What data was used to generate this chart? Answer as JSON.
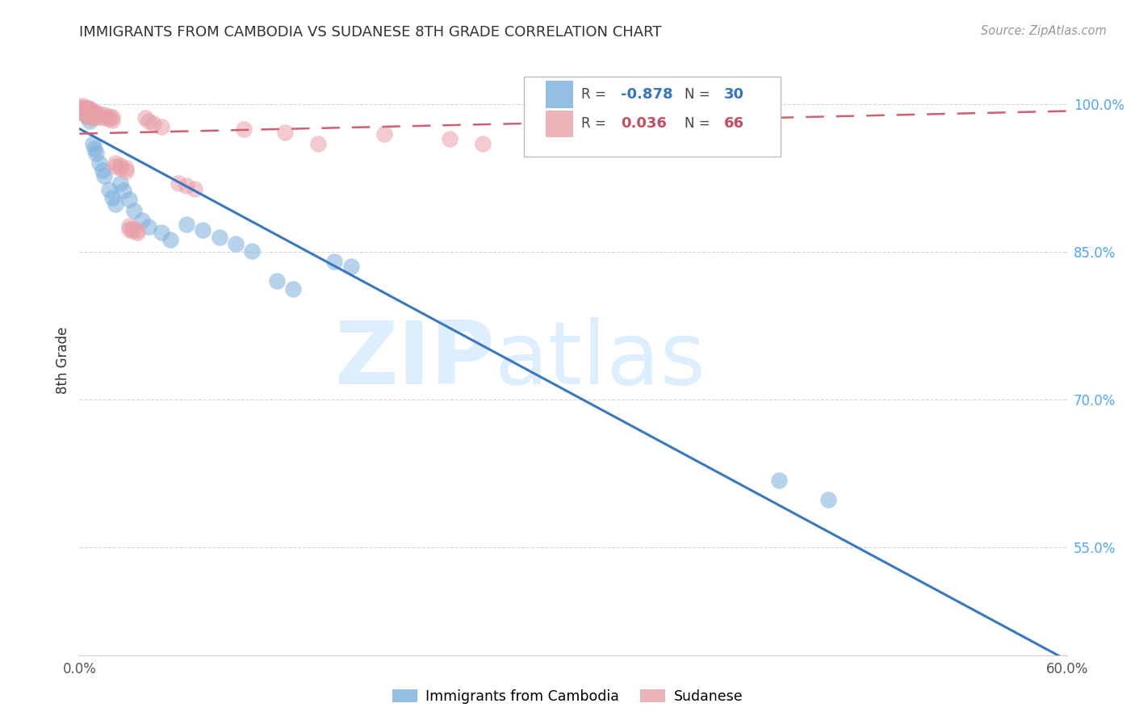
{
  "title": "IMMIGRANTS FROM CAMBODIA VS SUDANESE 8TH GRADE CORRELATION CHART",
  "source": "Source: ZipAtlas.com",
  "ylabel": "8th Grade",
  "xlim": [
    0.0,
    0.6
  ],
  "ylim": [
    0.44,
    1.04
  ],
  "xtick_positions": [
    0.0,
    0.1,
    0.2,
    0.3,
    0.4,
    0.5,
    0.6
  ],
  "xticklabels": [
    "0.0%",
    "",
    "",
    "",
    "",
    "",
    "60.0%"
  ],
  "yticks_right": [
    1.0,
    0.85,
    0.7,
    0.55
  ],
  "yticklabels_right": [
    "100.0%",
    "85.0%",
    "70.0%",
    "55.0%"
  ],
  "color_blue": "#7ab0dc",
  "color_pink": "#e8a0a8",
  "trendline_blue": [
    [
      0.0,
      0.975
    ],
    [
      0.6,
      0.435
    ]
  ],
  "trendline_pink": [
    [
      0.0,
      0.97
    ],
    [
      0.6,
      0.993
    ]
  ],
  "blue_points": [
    [
      0.003,
      0.993
    ],
    [
      0.004,
      0.988
    ],
    [
      0.006,
      0.983
    ],
    [
      0.008,
      0.96
    ],
    [
      0.009,
      0.955
    ],
    [
      0.01,
      0.95
    ],
    [
      0.012,
      0.94
    ],
    [
      0.014,
      0.933
    ],
    [
      0.015,
      0.927
    ],
    [
      0.018,
      0.913
    ],
    [
      0.02,
      0.905
    ],
    [
      0.022,
      0.898
    ],
    [
      0.025,
      0.92
    ],
    [
      0.027,
      0.912
    ],
    [
      0.03,
      0.903
    ],
    [
      0.033,
      0.892
    ],
    [
      0.038,
      0.882
    ],
    [
      0.042,
      0.875
    ],
    [
      0.05,
      0.87
    ],
    [
      0.055,
      0.862
    ],
    [
      0.065,
      0.878
    ],
    [
      0.075,
      0.872
    ],
    [
      0.085,
      0.865
    ],
    [
      0.095,
      0.858
    ],
    [
      0.105,
      0.851
    ],
    [
      0.12,
      0.82
    ],
    [
      0.13,
      0.812
    ],
    [
      0.155,
      0.84
    ],
    [
      0.165,
      0.835
    ],
    [
      0.425,
      0.618
    ],
    [
      0.455,
      0.598
    ]
  ],
  "pink_points": [
    [
      0.001,
      0.997
    ],
    [
      0.001,
      0.995
    ],
    [
      0.001,
      0.993
    ],
    [
      0.002,
      0.998
    ],
    [
      0.002,
      0.995
    ],
    [
      0.002,
      0.992
    ],
    [
      0.003,
      0.996
    ],
    [
      0.003,
      0.993
    ],
    [
      0.003,
      0.99
    ],
    [
      0.004,
      0.997
    ],
    [
      0.004,
      0.994
    ],
    [
      0.004,
      0.991
    ],
    [
      0.005,
      0.996
    ],
    [
      0.005,
      0.993
    ],
    [
      0.005,
      0.988
    ],
    [
      0.006,
      0.995
    ],
    [
      0.006,
      0.992
    ],
    [
      0.006,
      0.988
    ],
    [
      0.007,
      0.994
    ],
    [
      0.007,
      0.991
    ],
    [
      0.007,
      0.987
    ],
    [
      0.008,
      0.993
    ],
    [
      0.008,
      0.99
    ],
    [
      0.008,
      0.986
    ],
    [
      0.009,
      0.992
    ],
    [
      0.009,
      0.989
    ],
    [
      0.01,
      0.991
    ],
    [
      0.01,
      0.988
    ],
    [
      0.012,
      0.99
    ],
    [
      0.012,
      0.987
    ],
    [
      0.015,
      0.989
    ],
    [
      0.015,
      0.986
    ],
    [
      0.018,
      0.988
    ],
    [
      0.018,
      0.985
    ],
    [
      0.02,
      0.987
    ],
    [
      0.02,
      0.984
    ],
    [
      0.022,
      0.94
    ],
    [
      0.022,
      0.937
    ],
    [
      0.025,
      0.938
    ],
    [
      0.025,
      0.935
    ],
    [
      0.028,
      0.935
    ],
    [
      0.028,
      0.932
    ],
    [
      0.03,
      0.876
    ],
    [
      0.03,
      0.873
    ],
    [
      0.032,
      0.874
    ],
    [
      0.032,
      0.871
    ],
    [
      0.035,
      0.872
    ],
    [
      0.035,
      0.87
    ],
    [
      0.04,
      0.986
    ],
    [
      0.042,
      0.983
    ],
    [
      0.045,
      0.98
    ],
    [
      0.05,
      0.977
    ],
    [
      0.06,
      0.92
    ],
    [
      0.065,
      0.917
    ],
    [
      0.07,
      0.914
    ],
    [
      0.1,
      0.975
    ],
    [
      0.125,
      0.971
    ],
    [
      0.145,
      0.96
    ],
    [
      0.185,
      0.97
    ],
    [
      0.225,
      0.965
    ],
    [
      0.245,
      0.96
    ],
    [
      0.285,
      0.97
    ],
    [
      0.305,
      0.974
    ],
    [
      0.345,
      0.972
    ]
  ],
  "grid_color": "#cccccc",
  "background_color": "#ffffff",
  "watermark_color": "#ddeeff"
}
